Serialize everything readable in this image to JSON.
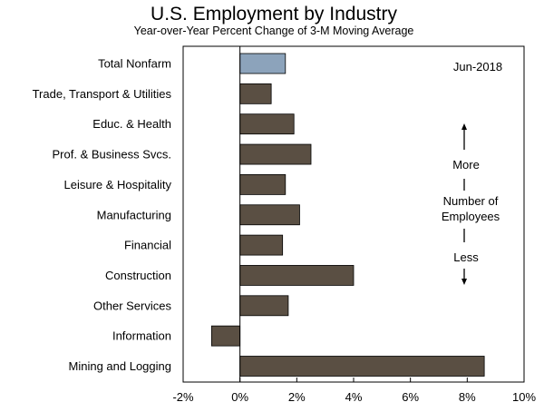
{
  "chart_data": {
    "type": "bar",
    "orientation": "horizontal",
    "title": "U.S. Employment by Industry",
    "subtitle": "Year-over-Year Percent Change of 3-M Moving Average",
    "xlabel": "",
    "ylabel": "",
    "xlim": [
      -2,
      10
    ],
    "xticks": [
      -2,
      0,
      2,
      4,
      6,
      8,
      10
    ],
    "xtick_labels": [
      "-2%",
      "0%",
      "2%",
      "4%",
      "6%",
      "8%",
      "10%"
    ],
    "grid": false,
    "categories": [
      "Total Nonfarm",
      "Trade, Transport & Utilities",
      "Educ. & Health",
      "Prof. & Business Svcs.",
      "Leisure & Hospitality",
      "Manufacturing",
      "Financial",
      "Construction",
      "Other Services",
      "Information",
      "Mining and Logging"
    ],
    "values": [
      1.6,
      1.1,
      1.9,
      2.5,
      1.6,
      2.1,
      1.5,
      4.0,
      1.7,
      -1.0,
      8.6
    ],
    "highlight_index": 0,
    "colors": {
      "bar": "#5a4f43",
      "highlight": "#8ca3bb",
      "axis": "#000000"
    },
    "annotations": {
      "date": "Jun-2018",
      "more": "More",
      "number_of": "Number of",
      "employees": "Employees",
      "less": "Less"
    }
  }
}
